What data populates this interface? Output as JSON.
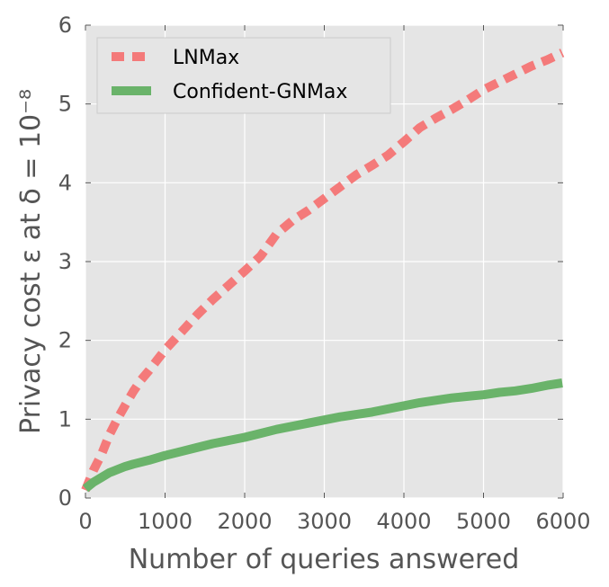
{
  "chart_data": {
    "type": "line",
    "xlabel": "Number of queries answered",
    "ylabel": "Privacy cost ε at δ = 10⁻⁸",
    "xlim": [
      0,
      6000
    ],
    "ylim": [
      0,
      6
    ],
    "xticks": [
      "0",
      "1000",
      "2000",
      "3000",
      "4000",
      "5000",
      "6000"
    ],
    "yticks": [
      "0",
      "1",
      "2",
      "3",
      "4",
      "5",
      "6"
    ],
    "grid": true,
    "legend_position": "top-left",
    "series": [
      {
        "name": "LNMax",
        "style": "dashed",
        "color": "#f47a7a",
        "x": [
          0,
          100,
          200,
          300,
          400,
          500,
          600,
          700,
          800,
          900,
          1000,
          1200,
          1400,
          1600,
          1800,
          2000,
          2200,
          2400,
          2600,
          2800,
          3000,
          3200,
          3400,
          3600,
          3800,
          4000,
          4200,
          4400,
          4600,
          4800,
          5000,
          5200,
          5400,
          5600,
          5800,
          5990
        ],
        "y": [
          0.1,
          0.35,
          0.55,
          0.8,
          1.0,
          1.18,
          1.35,
          1.5,
          1.62,
          1.75,
          1.88,
          2.1,
          2.32,
          2.52,
          2.7,
          2.88,
          3.07,
          3.35,
          3.52,
          3.65,
          3.8,
          3.95,
          4.1,
          4.22,
          4.35,
          4.52,
          4.7,
          4.82,
          4.93,
          5.05,
          5.18,
          5.28,
          5.38,
          5.48,
          5.56,
          5.65
        ]
      },
      {
        "name": "Confident-GNMax",
        "style": "solid",
        "color": "#6ab36a",
        "x": [
          0,
          100,
          200,
          300,
          400,
          500,
          600,
          800,
          1000,
          1200,
          1400,
          1600,
          1800,
          2000,
          2200,
          2400,
          2600,
          2800,
          3000,
          3200,
          3400,
          3600,
          3800,
          4000,
          4200,
          4400,
          4600,
          4800,
          5000,
          5200,
          5400,
          5600,
          5800,
          5990
        ],
        "y": [
          0.12,
          0.2,
          0.26,
          0.32,
          0.36,
          0.4,
          0.43,
          0.48,
          0.54,
          0.59,
          0.64,
          0.69,
          0.73,
          0.77,
          0.82,
          0.87,
          0.91,
          0.95,
          0.99,
          1.03,
          1.06,
          1.09,
          1.13,
          1.17,
          1.21,
          1.24,
          1.27,
          1.29,
          1.31,
          1.34,
          1.36,
          1.39,
          1.43,
          1.46
        ]
      }
    ]
  }
}
